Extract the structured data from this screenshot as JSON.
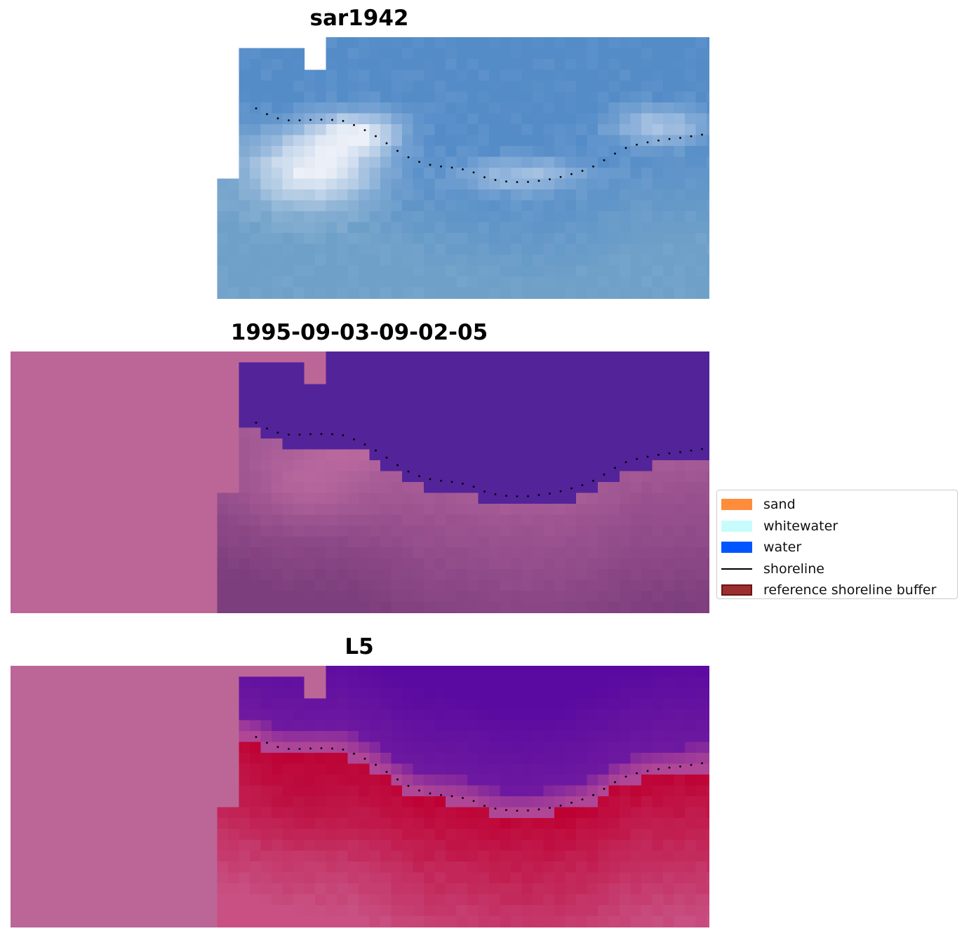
{
  "panels": [
    {
      "id": "sar",
      "title": "sar1942",
      "style": "optical"
    },
    {
      "id": "classification",
      "title": "1995-09-03-09-02-05",
      "style": "classified"
    },
    {
      "id": "index",
      "title": "L5",
      "style": "index"
    }
  ],
  "legend": {
    "items": [
      {
        "label": "sand",
        "kind": "patch",
        "color": "#ff8c3b"
      },
      {
        "label": "whitewater",
        "kind": "patch",
        "color": "#c8fcfc"
      },
      {
        "label": "water",
        "kind": "patch",
        "color": "#0055ff"
      },
      {
        "label": "shoreline",
        "kind": "line",
        "color": "#000000"
      },
      {
        "label": "reference shoreline buffer",
        "kind": "patch",
        "color": "#9b2f2f"
      }
    ]
  },
  "colors": {
    "nodata_background": "#bb6697",
    "water_class": "#53239a",
    "shoreline_points": "#000000"
  }
}
